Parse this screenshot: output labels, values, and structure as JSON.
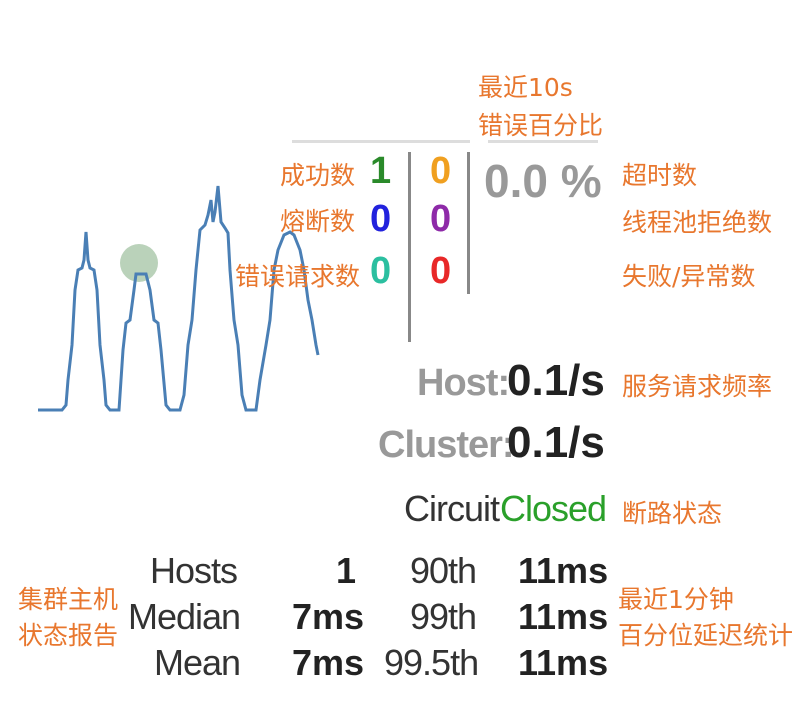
{
  "annotations": {
    "error_pct_10s_line1": "最近10s",
    "error_pct_10s_line2": "错误百分比",
    "success_count": "成功数",
    "short_circuited_count": "熔断数",
    "bad_request_count": "错误请求数",
    "timeout_count": "超时数",
    "threadpool_rejected_count": "线程池拒绝数",
    "failure_count": "失败/异常数",
    "request_rate": "服务请求频率",
    "circuit_status": "断路状态",
    "cluster_status_line1": "集群主机",
    "cluster_status_line2": "状态报告",
    "latency_line1": "最近1分钟",
    "latency_line2": "百分位延迟统计"
  },
  "counters": {
    "success": "1",
    "short_circuited": "0",
    "bad_request": "0",
    "timeout": "0",
    "threadpool_rejected": "0",
    "failure": "0"
  },
  "error_percentage": "0.0 %",
  "rates": {
    "host_label": "Host:",
    "host_value": "0.1/s",
    "cluster_label": "Cluster:",
    "cluster_value": "0.1/s"
  },
  "circuit": {
    "label": "Circuit",
    "status": "Closed"
  },
  "stats": {
    "hosts_label": "Hosts",
    "hosts_value": "1",
    "median_label": "Median",
    "median_value": "7ms",
    "mean_label": "Mean",
    "mean_value": "7ms",
    "p90_label": "90th",
    "p90_value": "11ms",
    "p99_label": "99th",
    "p99_value": "11ms",
    "p995_label": "99.5th",
    "p995_value": "11ms"
  },
  "colors": {
    "annotation": "#e8772e",
    "success": "#2a8a2a",
    "timeout": "#f0a020",
    "short_circuited": "#2222dd",
    "threadpool_rejected": "#8e2aa8",
    "bad_request": "#2bbfa0",
    "failure": "#e82828",
    "circuit_closed": "#2aa02a",
    "sparkline": "#4a7fb5",
    "health_circle": "#aac8aa"
  }
}
